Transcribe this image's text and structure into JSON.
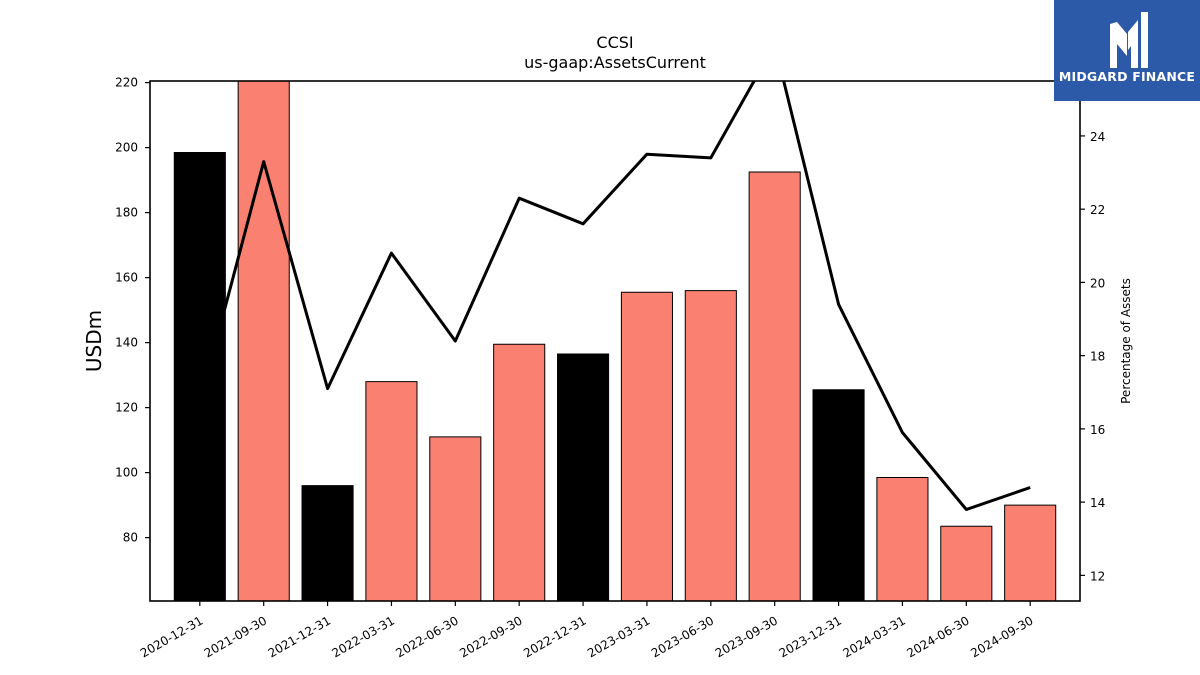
{
  "brand": {
    "name": "MIDGARD FINANCE",
    "colors": {
      "background": "#2c5aa8",
      "text": "#ffffff"
    },
    "icon": "midgard-logo-icon"
  },
  "chart_data": {
    "type": "bar",
    "title": "CCSI",
    "subtitle": "us-gaap:AssetsCurrent",
    "ylabel": "USDm",
    "y2label": "Percentage of Assets",
    "categories": [
      "2020-12-31",
      "2021-09-30",
      "2021-12-31",
      "2022-03-31",
      "2022-06-30",
      "2022-09-30",
      "2022-12-31",
      "2023-03-31",
      "2023-06-30",
      "2023-09-30",
      "2023-12-31",
      "2024-03-31",
      "2024-06-30",
      "2024-09-30"
    ],
    "series": [
      {
        "type": "bar",
        "values": [
          198.5,
          221,
          96,
          128,
          111,
          139.5,
          136.5,
          155.5,
          156,
          192.5,
          125.5,
          98.5,
          83.5,
          90
        ],
        "colors": [
          "#000000",
          "#fa8072",
          "#000000",
          "#fa8072",
          "#fa8072",
          "#fa8072",
          "#000000",
          "#fa8072",
          "#fa8072",
          "#fa8072",
          "#000000",
          "#fa8072",
          "#fa8072",
          "#fa8072"
        ],
        "axis": "left"
      },
      {
        "type": "line",
        "values": [
          16.7,
          23.3,
          17.1,
          20.8,
          18.4,
          22.3,
          21.6,
          23.5,
          23.4,
          26.5,
          19.4,
          15.9,
          13.8,
          14.4
        ],
        "color": "#000000",
        "axis": "right"
      }
    ],
    "ylim": [
      60.5,
      220.5
    ],
    "y2lim": [
      11.3,
      25.5
    ],
    "yticks": [
      80,
      100,
      120,
      140,
      160,
      180,
      200,
      220
    ],
    "y2ticks": [
      12,
      14,
      16,
      18,
      20,
      22,
      24
    ],
    "grid": false,
    "legend": "none"
  }
}
